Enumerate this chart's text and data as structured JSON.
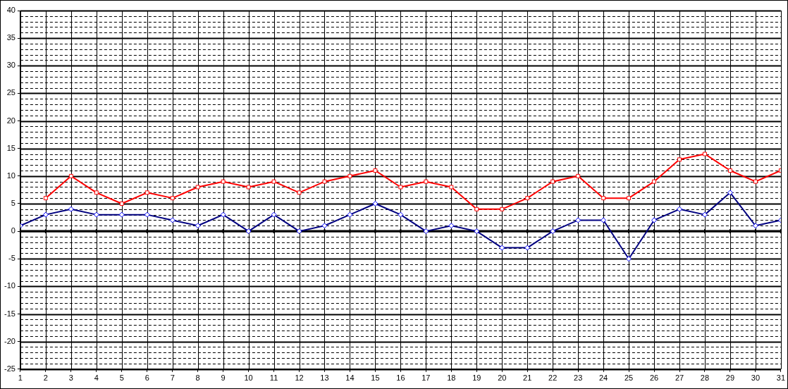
{
  "chart_data": {
    "type": "line",
    "x": [
      1,
      2,
      3,
      4,
      5,
      6,
      7,
      8,
      9,
      10,
      11,
      12,
      13,
      14,
      15,
      16,
      17,
      18,
      19,
      20,
      21,
      22,
      23,
      24,
      25,
      26,
      27,
      28,
      29,
      30,
      31
    ],
    "series": [
      {
        "color": "#ff0000",
        "marker": "square",
        "values": [
          null,
          6,
          10,
          7,
          5,
          7,
          6,
          8,
          9,
          8,
          9,
          7,
          9,
          10,
          11,
          8,
          9,
          8,
          4,
          4,
          6,
          9,
          10,
          6,
          6,
          9,
          13,
          14,
          11,
          9,
          11
        ]
      },
      {
        "color": "#000080",
        "marker": "diamond",
        "values": [
          1,
          3,
          4,
          3,
          3,
          3,
          2,
          1,
          3,
          0,
          3,
          0,
          1,
          3,
          5,
          3,
          0,
          1,
          0,
          -3,
          -3,
          0,
          2,
          2,
          -5,
          2,
          4,
          3,
          7,
          1,
          2
        ]
      }
    ],
    "xlim": [
      1,
      31
    ],
    "xticks": [
      1,
      2,
      3,
      4,
      5,
      6,
      7,
      8,
      9,
      10,
      11,
      12,
      13,
      14,
      15,
      16,
      17,
      18,
      19,
      20,
      21,
      22,
      23,
      24,
      25,
      26,
      27,
      28,
      29,
      30,
      31
    ],
    "ylim": [
      -25,
      40
    ],
    "yticks": [
      -25,
      {
        "value": -24,
        "label": null
      },
      {
        "value": -23,
        "label": null
      },
      {
        "value": -22,
        "label": null
      },
      {
        "value": -21,
        "label": null
      },
      -20,
      {
        "value": -19,
        "label": null
      },
      {
        "value": -18,
        "label": null
      },
      {
        "value": -17,
        "label": null
      },
      {
        "value": -16,
        "label": null
      },
      -15,
      {
        "value": -14,
        "label": null
      },
      {
        "value": -13,
        "label": null
      },
      {
        "value": -12,
        "label": null
      },
      {
        "value": -11,
        "label": null
      },
      -10,
      {
        "value": -9,
        "label": null
      },
      {
        "value": -8,
        "label": null
      },
      {
        "value": -7,
        "label": null
      },
      {
        "value": -6,
        "label": null
      },
      -5,
      {
        "value": -4,
        "label": null
      },
      {
        "value": -3,
        "label": null
      },
      {
        "value": -2,
        "label": null
      },
      {
        "value": -1,
        "label": null
      },
      0,
      {
        "value": 1,
        "label": null
      },
      {
        "value": 2,
        "label": null
      },
      {
        "value": 3,
        "label": null
      },
      {
        "value": 4,
        "label": null
      },
      5,
      {
        "value": 6,
        "label": null
      },
      {
        "value": 7,
        "label": null
      },
      {
        "value": 8,
        "label": null
      },
      {
        "value": 9,
        "label": null
      },
      10,
      {
        "value": 11,
        "label": null
      },
      {
        "value": 12,
        "label": null
      },
      {
        "value": 13,
        "label": null
      },
      {
        "value": 14,
        "label": null
      },
      15,
      {
        "value": 16,
        "label": null
      },
      {
        "value": 17,
        "label": null
      },
      {
        "value": 18,
        "label": null
      },
      {
        "value": 19,
        "label": null
      },
      20,
      {
        "value": 21,
        "label": null
      },
      {
        "value": 22,
        "label": null
      },
      {
        "value": 23,
        "label": null
      },
      {
        "value": 24,
        "label": null
      },
      25,
      {
        "value": 26,
        "label": null
      },
      {
        "value": 27,
        "label": null
      },
      {
        "value": 28,
        "label": null
      },
      {
        "value": 29,
        "label": null
      },
      30,
      {
        "value": 31,
        "label": null
      },
      {
        "value": 32,
        "label": null
      },
      {
        "value": 33,
        "label": null
      },
      {
        "value": 34,
        "label": null
      },
      35,
      {
        "value": 36,
        "label": null
      },
      {
        "value": 37,
        "label": null
      },
      {
        "value": 38,
        "label": null
      },
      {
        "value": 39,
        "label": null
      },
      40
    ],
    "grid": true,
    "line_style": "solid",
    "ref_lines": [
      {
        "axis": "y",
        "value": 0,
        "color": "#000000"
      }
    ],
    "legend": false
  }
}
